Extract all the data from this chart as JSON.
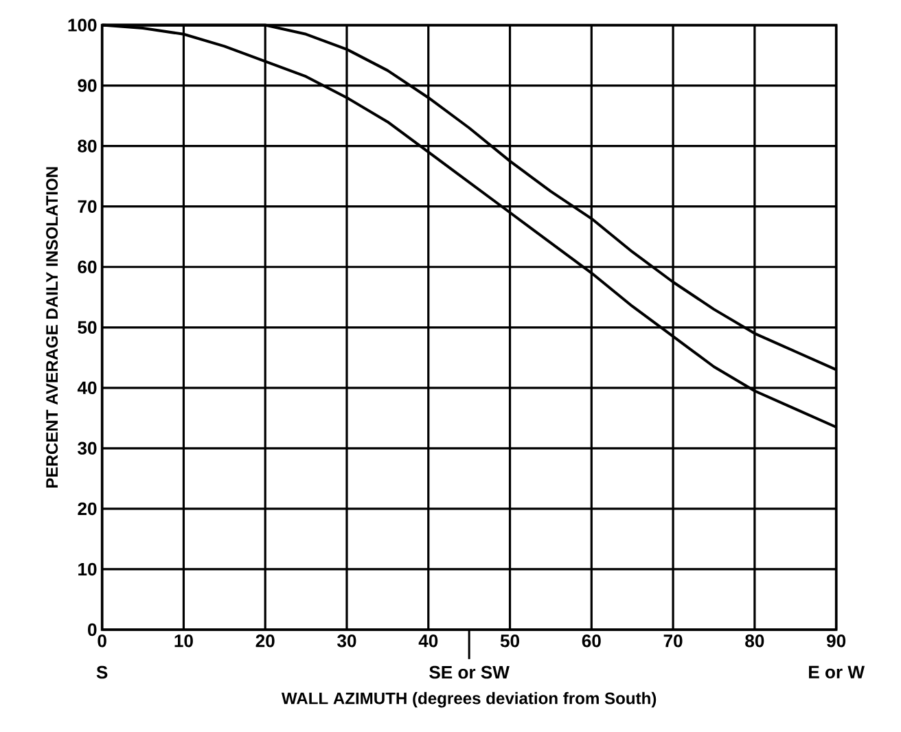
{
  "chart_data": {
    "type": "line",
    "xlabel": "WALL AZIMUTH (degrees deviation from South)",
    "ylabel": "PERCENT AVERAGE DAILY INSOLATION",
    "x": [
      0,
      5,
      10,
      15,
      20,
      25,
      30,
      35,
      40,
      45,
      50,
      55,
      60,
      65,
      70,
      75,
      80,
      85,
      90
    ],
    "series": [
      {
        "color": "#000000",
        "values": [
          100,
          100,
          100,
          100,
          100,
          98.5,
          96,
          92.5,
          88,
          83,
          77.5,
          72.5,
          68,
          62.5,
          57.5,
          53,
          49,
          46,
          43
        ]
      },
      {
        "color": "#000000",
        "values": [
          100,
          99.5,
          98.5,
          96.5,
          94,
          91.5,
          88,
          84,
          79,
          74,
          69,
          64,
          59,
          53.5,
          48.5,
          43.5,
          39.5,
          36.5,
          33.5
        ]
      }
    ],
    "xlim": [
      0,
      90
    ],
    "ylim": [
      0,
      100
    ],
    "xticks": [
      0,
      10,
      20,
      30,
      40,
      50,
      60,
      70,
      80,
      90
    ],
    "yticks": [
      0,
      10,
      20,
      30,
      40,
      50,
      60,
      70,
      80,
      90,
      100
    ],
    "grid": true,
    "marker": "none",
    "line_style": "solid",
    "annotations": [
      "S",
      "SE or SW",
      "E or W"
    ]
  }
}
